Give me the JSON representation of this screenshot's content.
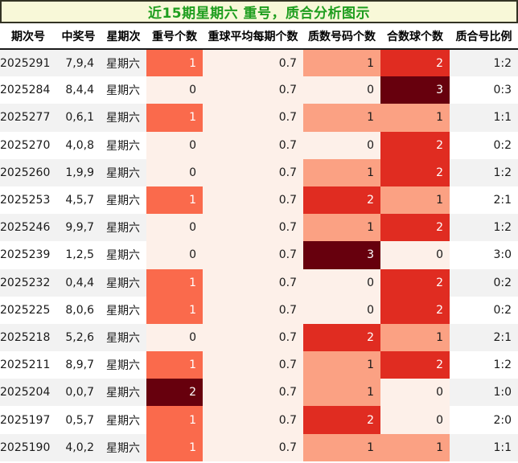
{
  "title": "近15期星期六 重号，质合分析图示",
  "chart_data": {
    "type": "heatmap",
    "title": "近15期星期六 重号，质合分析图示",
    "columns": [
      "期次号",
      "中奖号",
      "星期次",
      "重号个数",
      "重球平均每期个数",
      "质数号码个数",
      "合数球个数",
      "质合号比例"
    ],
    "rows": [
      {
        "period": "2025291",
        "winning_numbers": "7,9,4",
        "weekday": "星期六",
        "repeat_count": "1",
        "avg_per_period": "0.7",
        "prime_count": "1",
        "composite_count": "2",
        "ratio": "1:2"
      },
      {
        "period": "2025284",
        "winning_numbers": "8,4,4",
        "weekday": "星期六",
        "repeat_count": "0",
        "avg_per_period": "0.7",
        "prime_count": "0",
        "composite_count": "3",
        "ratio": "0:3"
      },
      {
        "period": "2025277",
        "winning_numbers": "0,6,1",
        "weekday": "星期六",
        "repeat_count": "1",
        "avg_per_period": "0.7",
        "prime_count": "1",
        "composite_count": "1",
        "ratio": "1:1"
      },
      {
        "period": "2025270",
        "winning_numbers": "4,0,8",
        "weekday": "星期六",
        "repeat_count": "0",
        "avg_per_period": "0.7",
        "prime_count": "0",
        "composite_count": "2",
        "ratio": "0:2"
      },
      {
        "period": "2025260",
        "winning_numbers": "1,9,9",
        "weekday": "星期六",
        "repeat_count": "0",
        "avg_per_period": "0.7",
        "prime_count": "1",
        "composite_count": "2",
        "ratio": "1:2"
      },
      {
        "period": "2025253",
        "winning_numbers": "4,5,7",
        "weekday": "星期六",
        "repeat_count": "1",
        "avg_per_period": "0.7",
        "prime_count": "2",
        "composite_count": "1",
        "ratio": "2:1"
      },
      {
        "period": "2025246",
        "winning_numbers": "9,9,7",
        "weekday": "星期六",
        "repeat_count": "0",
        "avg_per_period": "0.7",
        "prime_count": "1",
        "composite_count": "2",
        "ratio": "1:2"
      },
      {
        "period": "2025239",
        "winning_numbers": "1,2,5",
        "weekday": "星期六",
        "repeat_count": "0",
        "avg_per_period": "0.7",
        "prime_count": "3",
        "composite_count": "0",
        "ratio": "3:0"
      },
      {
        "period": "2025232",
        "winning_numbers": "0,4,4",
        "weekday": "星期六",
        "repeat_count": "1",
        "avg_per_period": "0.7",
        "prime_count": "0",
        "composite_count": "2",
        "ratio": "0:2"
      },
      {
        "period": "2025225",
        "winning_numbers": "8,0,6",
        "weekday": "星期六",
        "repeat_count": "1",
        "avg_per_period": "0.7",
        "prime_count": "0",
        "composite_count": "2",
        "ratio": "0:2"
      },
      {
        "period": "2025218",
        "winning_numbers": "5,2,6",
        "weekday": "星期六",
        "repeat_count": "0",
        "avg_per_period": "0.7",
        "prime_count": "2",
        "composite_count": "1",
        "ratio": "2:1"
      },
      {
        "period": "2025211",
        "winning_numbers": "8,9,7",
        "weekday": "星期六",
        "repeat_count": "1",
        "avg_per_period": "0.7",
        "prime_count": "1",
        "composite_count": "2",
        "ratio": "1:2"
      },
      {
        "period": "2025204",
        "winning_numbers": "0,0,7",
        "weekday": "星期六",
        "repeat_count": "2",
        "avg_per_period": "0.7",
        "prime_count": "1",
        "composite_count": "0",
        "ratio": "1:0"
      },
      {
        "period": "2025197",
        "winning_numbers": "0,5,7",
        "weekday": "星期六",
        "repeat_count": "1",
        "avg_per_period": "0.7",
        "prime_count": "2",
        "composite_count": "0",
        "ratio": "2:0"
      },
      {
        "period": "2025190",
        "winning_numbers": "4,0,2",
        "weekday": "星期六",
        "repeat_count": "1",
        "avg_per_period": "0.7",
        "prime_count": "1",
        "composite_count": "1",
        "ratio": "1:1"
      }
    ]
  },
  "heat_colors": {
    "level_0": {
      "bg": "#fdf0e9",
      "fg": "#1a1a1a"
    },
    "avg": {
      "bg": "#fdf0e9",
      "fg": "#1a1a1a"
    },
    "repeat_1": {
      "bg": "#fa6a4c",
      "fg": "#ffffff"
    },
    "repeat_2": {
      "bg": "#67000d",
      "fg": "#ffffff"
    },
    "count_1": {
      "bg": "#fba183",
      "fg": "#1a1a1a"
    },
    "count_2": {
      "bg": "#e02c21",
      "fg": "#ffffff"
    },
    "count_3": {
      "bg": "#67000d",
      "fg": "#ffffff"
    }
  },
  "theme": {
    "title_bg": "#f8f8d8",
    "title_border": "#333324",
    "title_color": "#1f9e1f",
    "row_alt_bg": "#f2f2f2",
    "header_border": "#1a1a1a"
  }
}
